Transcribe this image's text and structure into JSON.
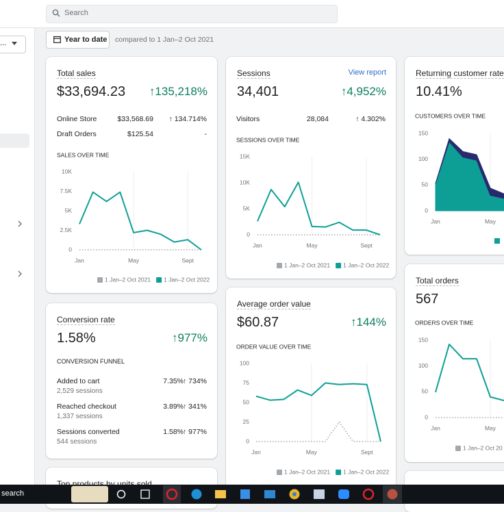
{
  "search": {
    "placeholder": "Search"
  },
  "sidebar": {
    "dropdown": "..."
  },
  "date_button": "Year to date",
  "compare_text": "compared to 1 Jan–2 Oct 2021",
  "cards": [
    {
      "title": "Total sales",
      "value": "$33,694.23",
      "change": "↑135,218%",
      "rows": [
        {
          "label": "Online Store",
          "value": "$33,568.69",
          "change": "↑ 134.714%"
        },
        {
          "label": "Draft Orders",
          "value": "$125.54",
          "change": "-"
        }
      ],
      "chart": {
        "type": "line",
        "title": "SALES OVER TIME",
        "categories": [
          "Jan",
          null,
          null,
          null,
          "May",
          null,
          null,
          null,
          "Sept",
          null
        ],
        "ylim": [
          0,
          10000
        ],
        "yticks": [
          0,
          {
            "value": 2500,
            "label": "2.5K"
          },
          {
            "value": 5000,
            "label": "5K"
          },
          {
            "value": 7500,
            "label": "7.5K"
          },
          {
            "value": 10000,
            "label": "10K"
          }
        ],
        "series": [
          {
            "name": "1 Jan–2 Oct 2021",
            "color": "#a3a8ad",
            "style": "dotted",
            "values": [
              0,
              0,
              0,
              0,
              0,
              0,
              0,
              0,
              0,
              0
            ]
          },
          {
            "name": "1 Jan–2 Oct 2022",
            "color": "#0d9f96",
            "style": "solid",
            "values": [
              3300,
              7400,
              6200,
              7400,
              2200,
              2500,
              2000,
              1000,
              1300,
              0
            ]
          }
        ]
      }
    },
    {
      "title": "Sessions",
      "link": "View report",
      "value": "34,401",
      "change": "↑4,952%",
      "rows": [
        {
          "label": "Visitors",
          "value": "28,084",
          "change": "↑ 4.302%"
        }
      ],
      "chart": {
        "type": "line",
        "title": "SESSIONS OVER TIME",
        "categories": [
          "Jan",
          null,
          null,
          null,
          "May",
          null,
          null,
          null,
          "Sept",
          null
        ],
        "ylim": [
          0,
          15000
        ],
        "yticks": [
          0,
          {
            "value": 5000,
            "label": "5K"
          },
          {
            "value": 10000,
            "label": "10K"
          },
          {
            "value": 15000,
            "label": "15K"
          }
        ],
        "series": [
          {
            "name": "1 Jan–2 Oct 2021",
            "color": "#a3a8ad",
            "style": "dotted",
            "values": [
              0,
              0,
              0,
              0,
              0,
              0,
              0,
              0,
              0,
              0
            ]
          },
          {
            "name": "1 Jan–2 Oct 2022",
            "color": "#0d9f96",
            "style": "solid",
            "values": [
              2600,
              8700,
              5400,
              10100,
              1600,
              1500,
              2400,
              900,
              900,
              0
            ]
          }
        ]
      }
    },
    {
      "title": "Returning customer rate",
      "value": "10.41%",
      "chart": {
        "type": "area",
        "title": "CUSTOMERS OVER TIME",
        "categories": [
          "Jan",
          null,
          null,
          null,
          "May",
          null
        ],
        "ylim": [
          0,
          150
        ],
        "yticks": [
          0,
          50,
          100,
          150
        ],
        "series": [
          {
            "color": "#0d9f96",
            "values": [
              53,
              134,
              104,
              98,
              30,
              24
            ]
          },
          {
            "color": "#272b6e",
            "values": [
              0,
              6,
              11,
              11,
              14,
              9
            ]
          }
        ]
      }
    },
    {
      "title": "Conversion rate",
      "value": "1.58%",
      "change": "↑977%",
      "funnel_title": "CONVERSION FUNNEL",
      "funnel": [
        {
          "label": "Added to cart",
          "sessions": "2,529 sessions",
          "rate": "7.35%",
          "change": "↑ 734%"
        },
        {
          "label": "Reached checkout",
          "sessions": "1,337 sessions",
          "rate": "3.89%",
          "change": "↑ 341%"
        },
        {
          "label": "Sessions converted",
          "sessions": "544 sessions",
          "rate": "1.58%",
          "change": "↑ 977%"
        }
      ]
    },
    {
      "title": "Average order value",
      "value": "$60.87",
      "change": "↑144%",
      "chart": {
        "type": "line",
        "title": "ORDER VALUE OVER TIME",
        "categories": [
          "Jan",
          null,
          null,
          null,
          "May",
          null,
          null,
          null,
          "Sept",
          null
        ],
        "ylim": [
          0,
          100
        ],
        "yticks": [
          0,
          25,
          50,
          75,
          100
        ],
        "series": [
          {
            "name": "1 Jan–2 Oct 2021",
            "color": "#a3a8ad",
            "style": "dotted",
            "values": [
              0,
              0,
              0,
              0,
              0,
              0,
              25,
              0,
              0,
              0
            ]
          },
          {
            "name": "1 Jan–2 Oct 2022",
            "color": "#0d9f96",
            "style": "solid",
            "values": [
              58,
              53,
              54,
              66,
              59,
              75,
              73,
              74,
              73,
              0
            ]
          }
        ]
      }
    },
    {
      "title": "Total orders",
      "value": "567",
      "chart": {
        "type": "line",
        "title": "ORDERS OVER TIME",
        "categories": [
          "Jan",
          null,
          null,
          null,
          "May",
          null
        ],
        "ylim": [
          0,
          150
        ],
        "yticks": [
          0,
          50,
          100,
          150
        ],
        "series": [
          {
            "name": "1 Jan–2 Oct 20",
            "color": "#a3a8ad",
            "style": "dotted",
            "values": [
              0,
              0,
              0,
              0,
              0,
              0
            ]
          },
          {
            "color": "#0d9f96",
            "style": "solid",
            "values": [
              49,
              142,
              114,
              114,
              40,
              33
            ]
          }
        ]
      }
    },
    {
      "title": "Top products by units sold"
    }
  ],
  "taskbar": {
    "search": "search"
  }
}
